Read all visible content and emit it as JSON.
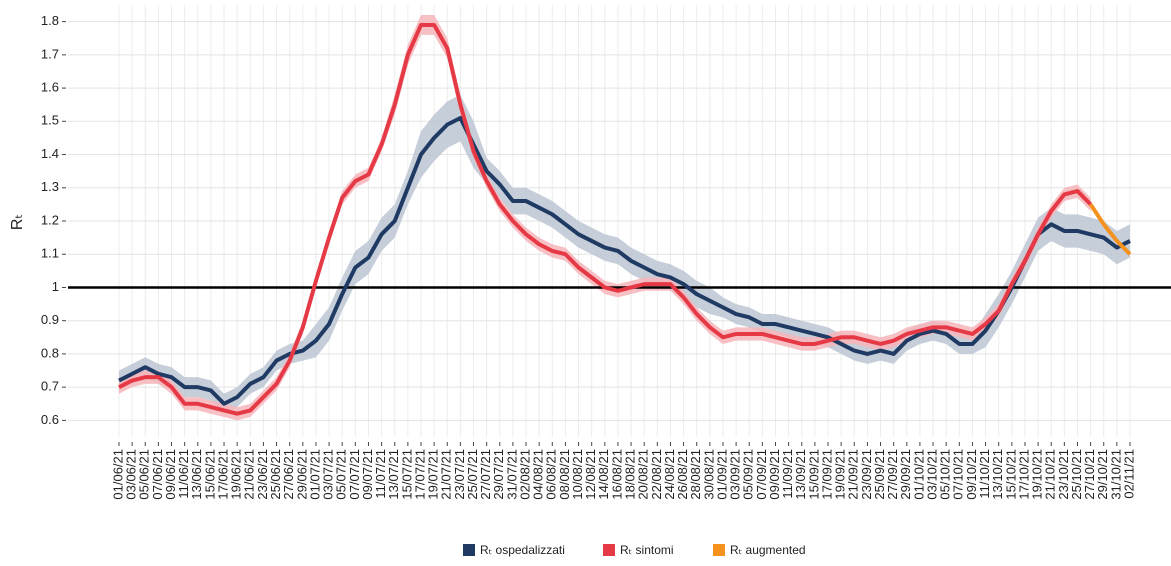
{
  "chart_data": {
    "type": "line",
    "y_label": "Rₜ",
    "categories": [
      "01/06/21",
      "03/06/21",
      "05/06/21",
      "07/06/21",
      "09/06/21",
      "11/06/21",
      "13/06/21",
      "15/06/21",
      "17/06/21",
      "19/06/21",
      "21/06/21",
      "23/06/21",
      "25/06/21",
      "27/06/21",
      "29/06/21",
      "01/07/21",
      "03/07/21",
      "05/07/21",
      "07/07/21",
      "09/07/21",
      "11/07/21",
      "13/07/21",
      "15/07/21",
      "17/07/21",
      "19/07/21",
      "21/07/21",
      "23/07/21",
      "25/07/21",
      "27/07/21",
      "29/07/21",
      "31/07/21",
      "02/08/21",
      "04/08/21",
      "06/08/21",
      "08/08/21",
      "10/08/21",
      "12/08/21",
      "14/08/21",
      "16/08/21",
      "18/08/21",
      "20/08/21",
      "22/08/21",
      "24/08/21",
      "26/08/21",
      "28/08/21",
      "30/08/21",
      "01/09/21",
      "03/09/21",
      "05/09/21",
      "07/09/21",
      "09/09/21",
      "11/09/21",
      "13/09/21",
      "15/09/21",
      "17/09/21",
      "19/09/21",
      "21/09/21",
      "23/09/21",
      "25/09/21",
      "27/09/21",
      "29/09/21",
      "01/10/21",
      "03/10/21",
      "05/10/21",
      "07/10/21",
      "09/10/21",
      "11/10/21",
      "13/10/21",
      "15/10/21",
      "17/10/21",
      "19/10/21",
      "21/10/21",
      "23/10/21",
      "25/10/21",
      "27/10/21",
      "29/10/21",
      "31/10/21",
      "02/11/21"
    ],
    "series": [
      {
        "name": "Rₜ ospedalizzati",
        "color": "#1f3a63",
        "band_color": "#bcc5d4",
        "values": [
          0.72,
          0.74,
          0.76,
          0.74,
          0.73,
          0.7,
          0.7,
          0.69,
          0.65,
          0.67,
          0.71,
          0.73,
          0.78,
          0.8,
          0.81,
          0.84,
          0.89,
          0.98,
          1.06,
          1.09,
          1.16,
          1.2,
          1.3,
          1.4,
          1.45,
          1.49,
          1.51,
          1.43,
          1.35,
          1.31,
          1.26,
          1.26,
          1.24,
          1.22,
          1.19,
          1.16,
          1.14,
          1.12,
          1.11,
          1.08,
          1.06,
          1.04,
          1.03,
          1.01,
          0.98,
          0.96,
          0.94,
          0.92,
          0.91,
          0.89,
          0.89,
          0.88,
          0.87,
          0.86,
          0.85,
          0.83,
          0.81,
          0.8,
          0.81,
          0.8,
          0.84,
          0.86,
          0.87,
          0.86,
          0.83,
          0.83,
          0.87,
          0.93,
          1.0,
          1.08,
          1.16,
          1.19,
          1.17,
          1.17,
          1.16,
          1.15,
          1.12,
          1.14
        ],
        "error": [
          0.03,
          0.03,
          0.03,
          0.03,
          0.03,
          0.03,
          0.03,
          0.03,
          0.03,
          0.03,
          0.03,
          0.03,
          0.03,
          0.03,
          0.03,
          0.05,
          0.05,
          0.05,
          0.05,
          0.05,
          0.05,
          0.05,
          0.05,
          0.07,
          0.07,
          0.07,
          0.07,
          0.07,
          0.04,
          0.04,
          0.04,
          0.04,
          0.04,
          0.04,
          0.04,
          0.04,
          0.04,
          0.04,
          0.04,
          0.04,
          0.04,
          0.04,
          0.04,
          0.04,
          0.04,
          0.04,
          0.03,
          0.03,
          0.03,
          0.03,
          0.03,
          0.03,
          0.03,
          0.03,
          0.03,
          0.03,
          0.03,
          0.03,
          0.03,
          0.03,
          0.03,
          0.03,
          0.03,
          0.03,
          0.03,
          0.03,
          0.05,
          0.05,
          0.05,
          0.05,
          0.05,
          0.05,
          0.05,
          0.05,
          0.05,
          0.05,
          0.05,
          0.05
        ]
      },
      {
        "name": "Rₜ sintomi",
        "color": "#e63946",
        "band_color": "#f6b5ba",
        "values": [
          0.7,
          0.72,
          0.73,
          0.73,
          0.7,
          0.65,
          0.65,
          0.64,
          0.63,
          0.62,
          0.63,
          0.67,
          0.71,
          0.78,
          0.88,
          1.02,
          1.15,
          1.27,
          1.32,
          1.34,
          1.43,
          1.55,
          1.7,
          1.79,
          1.79,
          1.72,
          1.55,
          1.41,
          1.32,
          1.25,
          1.2,
          1.16,
          1.13,
          1.11,
          1.1,
          1.06,
          1.03,
          1.0,
          0.99,
          1.0,
          1.01,
          1.01,
          1.01,
          0.97,
          0.92,
          0.88,
          0.85,
          0.86,
          0.86,
          0.86,
          0.85,
          0.84,
          0.83,
          0.83,
          0.84,
          0.85,
          0.85,
          0.84,
          0.83,
          0.84,
          0.86,
          0.87,
          0.88,
          0.88,
          0.87,
          0.86,
          0.89,
          0.93,
          1.01,
          1.08,
          1.16,
          1.23,
          1.28,
          1.29,
          1.25,
          null,
          null,
          null
        ],
        "error": [
          0.02,
          0.02,
          0.02,
          0.02,
          0.02,
          0.02,
          0.02,
          0.02,
          0.02,
          0.02,
          0.02,
          0.02,
          0.02,
          0.02,
          0.02,
          0.02,
          0.02,
          0.02,
          0.02,
          0.02,
          0.02,
          0.03,
          0.03,
          0.03,
          0.03,
          0.03,
          0.03,
          0.02,
          0.02,
          0.02,
          0.02,
          0.02,
          0.02,
          0.02,
          0.02,
          0.02,
          0.02,
          0.02,
          0.02,
          0.02,
          0.02,
          0.02,
          0.02,
          0.02,
          0.02,
          0.02,
          0.02,
          0.02,
          0.02,
          0.02,
          0.02,
          0.02,
          0.02,
          0.02,
          0.02,
          0.02,
          0.02,
          0.02,
          0.02,
          0.02,
          0.02,
          0.02,
          0.02,
          0.02,
          0.02,
          0.02,
          0.02,
          0.02,
          0.02,
          0.02,
          0.02,
          0.02,
          0.02,
          0.02,
          0.02,
          null,
          null,
          null
        ]
      },
      {
        "name": "Rₜ augmented",
        "color": "#f5921e",
        "values": [
          null,
          null,
          null,
          null,
          null,
          null,
          null,
          null,
          null,
          null,
          null,
          null,
          null,
          null,
          null,
          null,
          null,
          null,
          null,
          null,
          null,
          null,
          null,
          null,
          null,
          null,
          null,
          null,
          null,
          null,
          null,
          null,
          null,
          null,
          null,
          null,
          null,
          null,
          null,
          null,
          null,
          null,
          null,
          null,
          null,
          null,
          null,
          null,
          null,
          null,
          null,
          null,
          null,
          null,
          null,
          null,
          null,
          null,
          null,
          null,
          null,
          null,
          null,
          null,
          null,
          null,
          null,
          null,
          null,
          null,
          null,
          null,
          null,
          null,
          1.25,
          1.19,
          1.14,
          1.1
        ]
      }
    ],
    "reference_line": 1.0,
    "ylim": [
      0.55,
      1.85
    ],
    "yticks": [
      0.6,
      0.7,
      0.8,
      0.9,
      1.0,
      1.1,
      1.2,
      1.3,
      1.4,
      1.5,
      1.6,
      1.7,
      1.8
    ],
    "grid": true
  }
}
